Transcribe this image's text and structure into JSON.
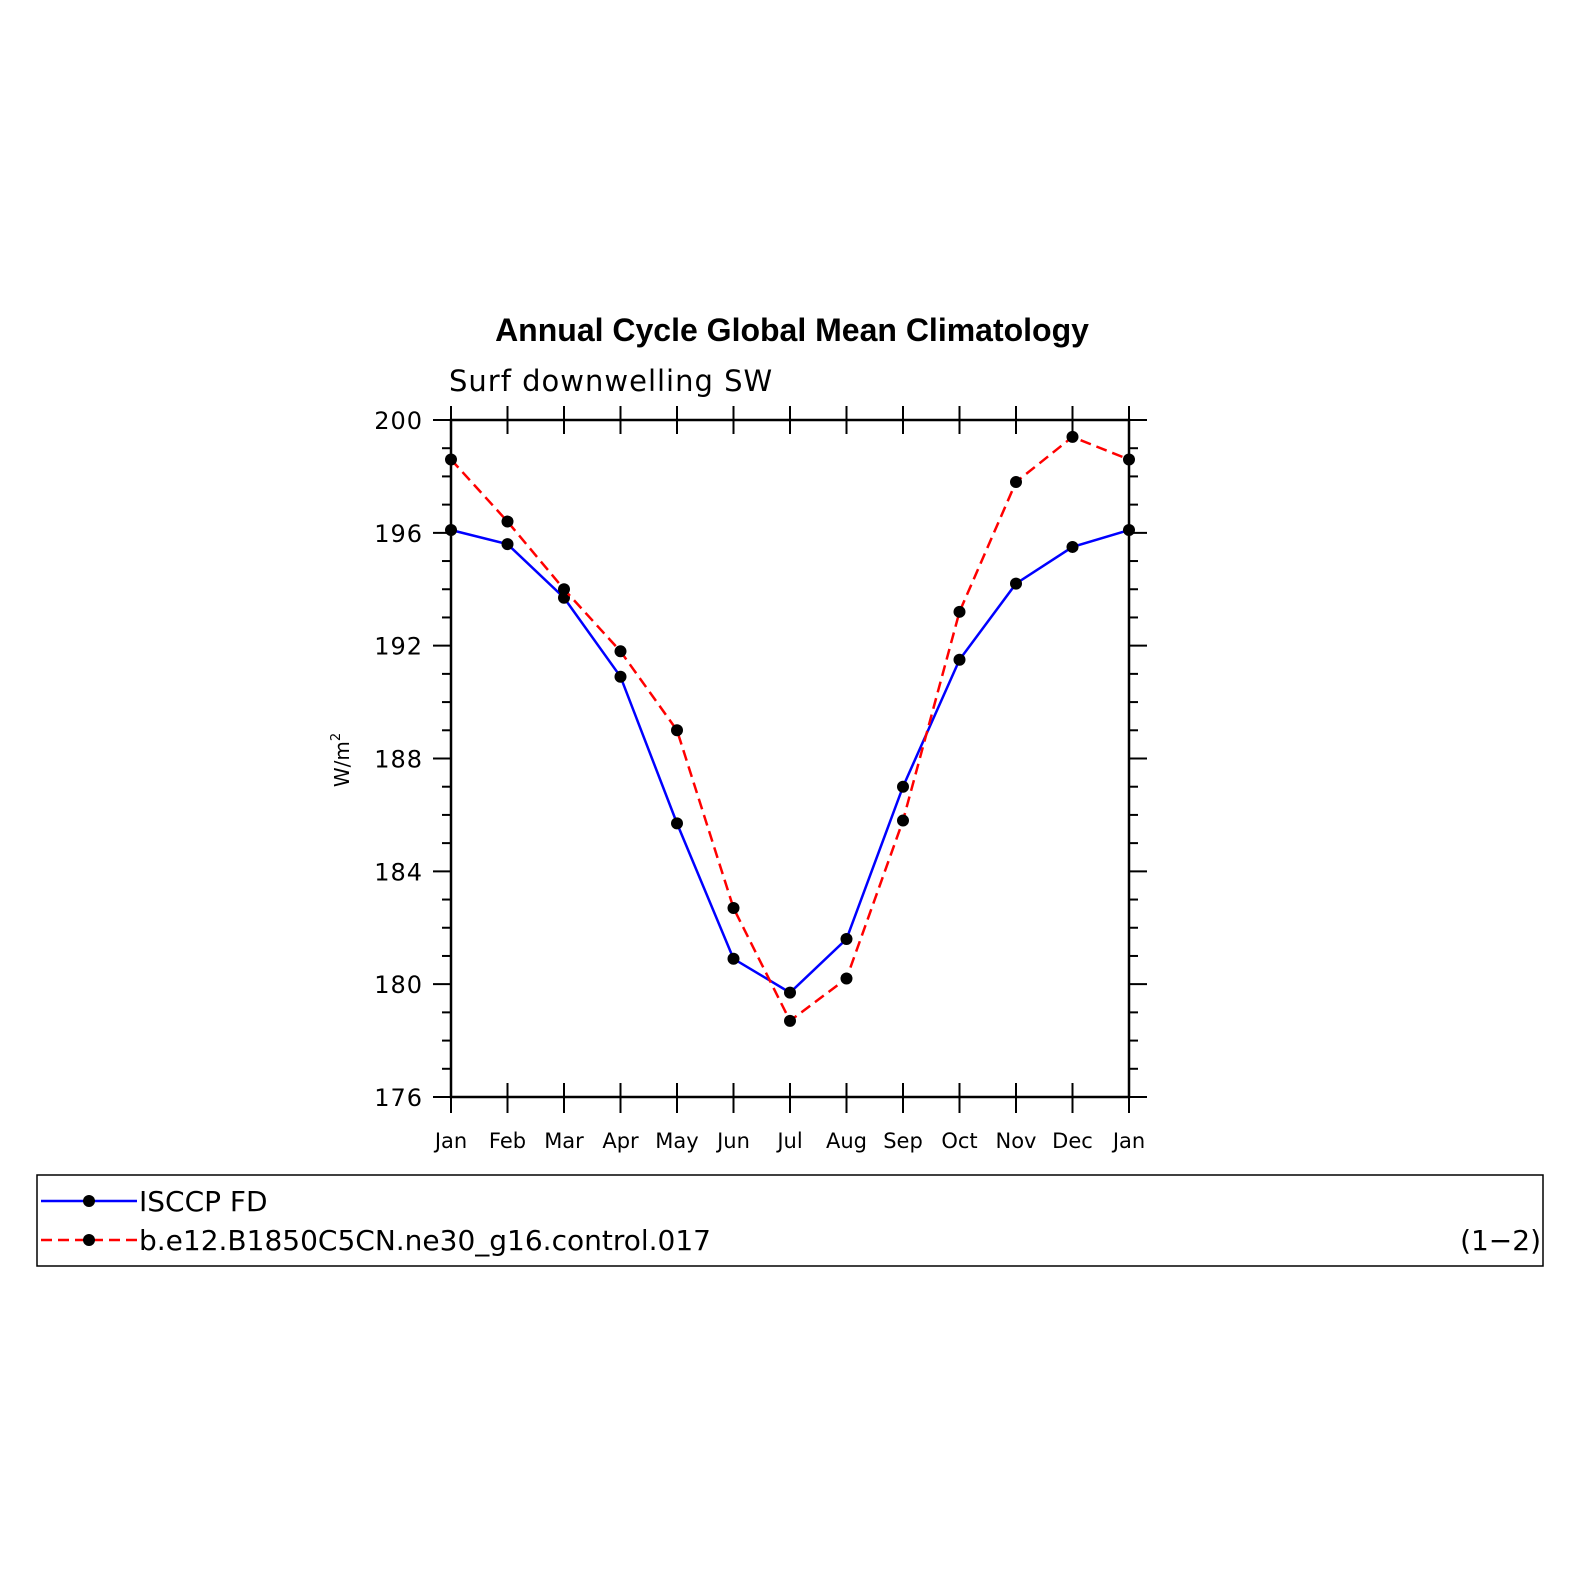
{
  "chart_data": {
    "type": "line",
    "title": "Annual Cycle Global Mean Climatology",
    "subtitle": "Surf downwelling SW",
    "ylabel": "W/m",
    "ylabel_sup": "2",
    "categories": [
      "Jan",
      "Feb",
      "Mar",
      "Apr",
      "May",
      "Jun",
      "Jul",
      "Aug",
      "Sep",
      "Oct",
      "Nov",
      "Dec",
      "Jan"
    ],
    "ylim": [
      176,
      200
    ],
    "yticks": [
      "176",
      "180",
      "184",
      "188",
      "192",
      "196",
      "200"
    ],
    "series": [
      {
        "name": "ISCCP FD",
        "color": "#0000ff",
        "dash": "solid",
        "values": [
          196.1,
          195.6,
          193.7,
          190.9,
          185.7,
          180.9,
          179.7,
          181.6,
          187.0,
          191.5,
          194.2,
          195.5,
          196.1
        ]
      },
      {
        "name": "b.e12.B1850C5CN.ne30_g16.control.017",
        "color": "#ff0000",
        "dash": "dashed",
        "values": [
          198.6,
          196.4,
          194.0,
          191.8,
          189.0,
          182.7,
          178.7,
          180.2,
          185.8,
          193.2,
          197.8,
          199.4,
          198.6
        ]
      }
    ],
    "legend_position": "bottom",
    "legend_note": "(1−2)"
  }
}
